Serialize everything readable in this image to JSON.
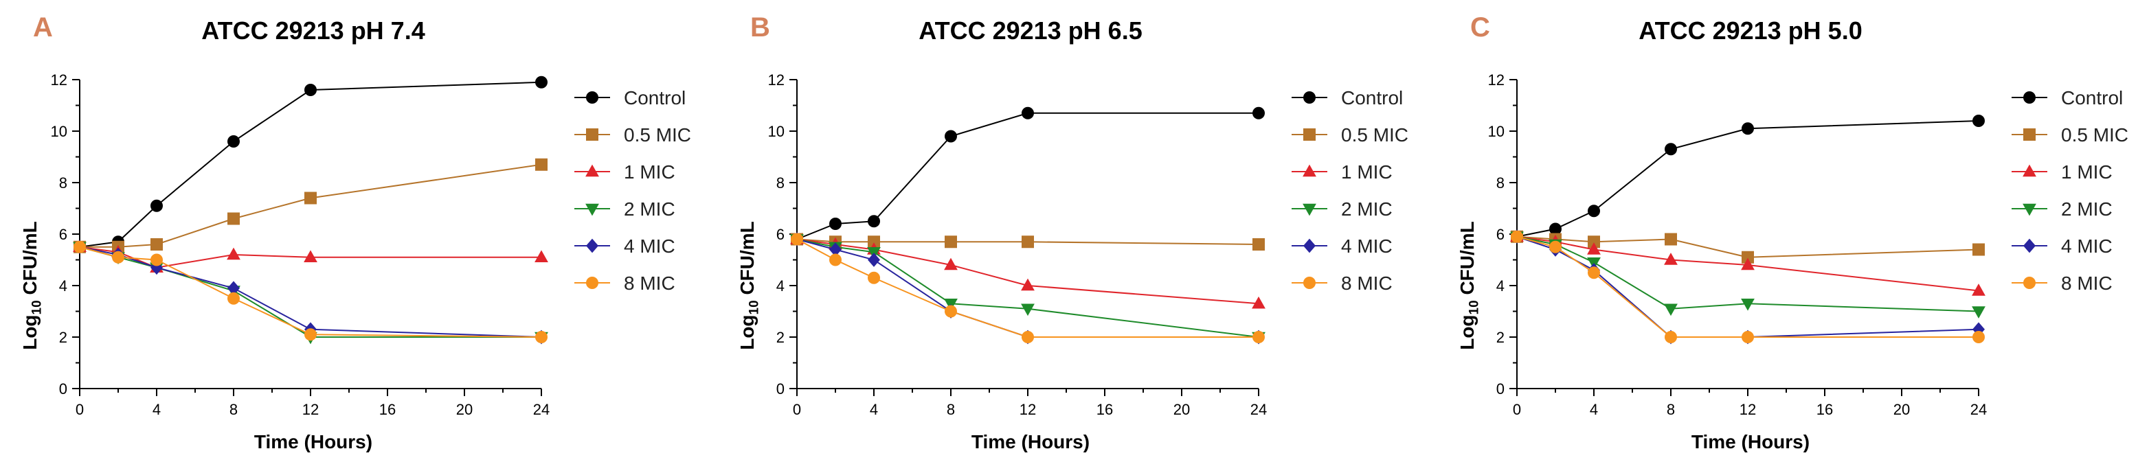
{
  "chart_data": [
    {
      "type": "line",
      "panel_label": "A",
      "title": "ATCC 29213 pH 7.4",
      "xlabel": "Time (Hours)",
      "ylabel_main": "Log",
      "ylabel_sub": "10",
      "ylabel_rest": " CFU/mL",
      "x": [
        0,
        2,
        4,
        8,
        12,
        24
      ],
      "xlim": [
        0,
        24
      ],
      "ylim": [
        0,
        12
      ],
      "xticks": [
        0,
        4,
        8,
        12,
        16,
        20,
        24
      ],
      "yticks": [
        0,
        2,
        4,
        6,
        8,
        10,
        12
      ],
      "legend_position": "right",
      "series": [
        {
          "name": "Control",
          "values": [
            5.5,
            5.7,
            7.1,
            9.6,
            11.6,
            11.9
          ]
        },
        {
          "name": "0.5 MIC",
          "values": [
            5.5,
            5.5,
            5.6,
            6.6,
            7.4,
            8.7
          ]
        },
        {
          "name": "1 MIC",
          "values": [
            5.5,
            5.3,
            4.7,
            5.2,
            5.1,
            5.1
          ]
        },
        {
          "name": "2 MIC",
          "values": [
            5.5,
            5.1,
            4.7,
            3.8,
            2.0,
            2.0
          ]
        },
        {
          "name": "4 MIC",
          "values": [
            5.5,
            5.2,
            4.7,
            3.9,
            2.3,
            2.0
          ]
        },
        {
          "name": "8 MIC",
          "values": [
            5.5,
            5.1,
            5.0,
            3.5,
            2.1,
            2.0
          ]
        }
      ]
    },
    {
      "type": "line",
      "panel_label": "B",
      "title": "ATCC 29213 pH 6.5",
      "xlabel": "Time (Hours)",
      "ylabel_main": "Log",
      "ylabel_sub": "10",
      "ylabel_rest": " CFU/mL",
      "x": [
        0,
        2,
        4,
        8,
        12,
        24
      ],
      "xlim": [
        0,
        24
      ],
      "ylim": [
        0,
        12
      ],
      "xticks": [
        0,
        4,
        8,
        12,
        16,
        20,
        24
      ],
      "yticks": [
        0,
        2,
        4,
        6,
        8,
        10,
        12
      ],
      "legend_position": "right",
      "series": [
        {
          "name": "Control",
          "values": [
            5.8,
            6.4,
            6.5,
            9.8,
            10.7,
            10.7
          ]
        },
        {
          "name": "0.5 MIC",
          "values": [
            5.8,
            5.7,
            5.7,
            5.7,
            5.7,
            5.6
          ]
        },
        {
          "name": "1 MIC",
          "values": [
            5.8,
            5.6,
            5.4,
            4.8,
            4.0,
            3.3
          ]
        },
        {
          "name": "2 MIC",
          "values": [
            5.8,
            5.5,
            5.3,
            3.3,
            3.1,
            2.0
          ]
        },
        {
          "name": "4 MIC",
          "values": [
            5.8,
            5.4,
            5.0,
            3.0,
            2.0,
            2.0
          ]
        },
        {
          "name": "8 MIC",
          "values": [
            5.8,
            5.0,
            4.3,
            3.0,
            2.0,
            2.0
          ]
        }
      ]
    },
    {
      "type": "line",
      "panel_label": "C",
      "title": "ATCC 29213 pH 5.0",
      "xlabel": "Time (Hours)",
      "ylabel_main": "Log",
      "ylabel_sub": "10",
      "ylabel_rest": " CFU/mL",
      "x": [
        0,
        2,
        4,
        8,
        12,
        24
      ],
      "xlim": [
        0,
        24
      ],
      "ylim": [
        0,
        12
      ],
      "xticks": [
        0,
        4,
        8,
        12,
        16,
        20,
        24
      ],
      "yticks": [
        0,
        2,
        4,
        6,
        8,
        10,
        12
      ],
      "legend_position": "right",
      "series": [
        {
          "name": "Control",
          "values": [
            5.9,
            6.2,
            6.9,
            9.3,
            10.1,
            10.4
          ]
        },
        {
          "name": "0.5 MIC",
          "values": [
            5.9,
            5.8,
            5.7,
            5.8,
            5.1,
            5.4
          ]
        },
        {
          "name": "1 MIC",
          "values": [
            5.9,
            5.7,
            5.4,
            5.0,
            4.8,
            3.8
          ]
        },
        {
          "name": "2 MIC",
          "values": [
            5.9,
            5.6,
            4.9,
            3.1,
            3.3,
            3.0
          ]
        },
        {
          "name": "4 MIC",
          "values": [
            5.9,
            5.4,
            4.6,
            2.0,
            2.0,
            2.3
          ]
        },
        {
          "name": "8 MIC",
          "values": [
            5.9,
            5.5,
            4.5,
            2.0,
            2.0,
            2.0
          ]
        }
      ]
    }
  ],
  "series_styles": [
    {
      "color": "#000000",
      "marker": "circle"
    },
    {
      "color": "#B5742A",
      "marker": "square"
    },
    {
      "color": "#E0252B",
      "marker": "triangle-up"
    },
    {
      "color": "#1E8B2A",
      "marker": "triangle-down"
    },
    {
      "color": "#28249E",
      "marker": "diamond"
    },
    {
      "color": "#F7931E",
      "marker": "circle"
    }
  ]
}
